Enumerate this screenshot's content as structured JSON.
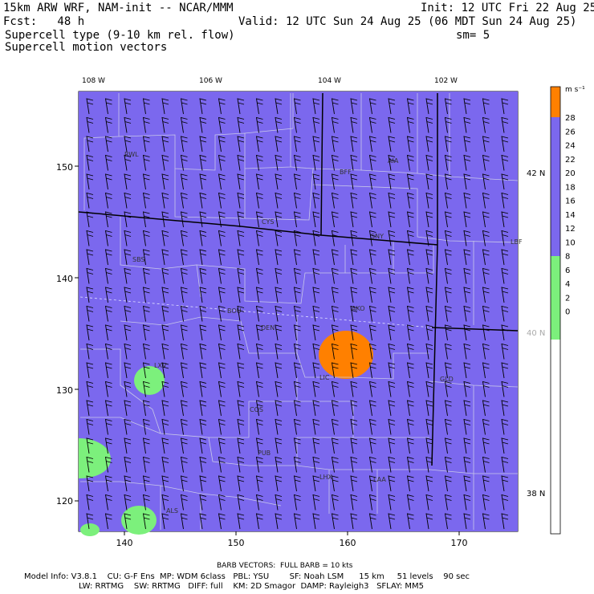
{
  "header": {
    "model_line": "15km ARW WRF, NAM-init -- NCAR/MMM",
    "init_line": "Init: 12 UTC Fri 22 Aug 25",
    "fcst_line": "Fcst:   48 h",
    "valid_line": "Valid: 12 UTC Sun 24 Aug 25 (06 MDT Sun 24 Aug 25)",
    "field_line": "Supercell type (9-10 km rel. flow)",
    "sm_line": "sm= 5",
    "vector_line": "Supercell motion vectors"
  },
  "map": {
    "fill_color": "#7b68ee",
    "lon_labels": [
      "108 W",
      "106 W",
      "104 W",
      "102 W"
    ],
    "lat_labels": [
      "42 N",
      "40 N",
      "38 N"
    ],
    "grid_x_ticks": [
      "140",
      "150",
      "160",
      "170"
    ],
    "grid_y_ticks": [
      "150",
      "140",
      "130",
      "120"
    ],
    "stations": [
      "RWL",
      "BFF",
      "AIA",
      "CYS",
      "SNY",
      "LBF",
      "SBS",
      "BOU",
      "DEN",
      "AKO",
      "LXV",
      "LIC",
      "GLD",
      "COS",
      "PUB",
      "LHX",
      "LAA",
      "ALS"
    ],
    "blobs": [
      {
        "color": "#ff8000",
        "label": "orange region near LIC"
      },
      {
        "color": "#7cf07c",
        "label": "green region near LXV"
      },
      {
        "color": "#7cf07c",
        "label": "green region west edge"
      },
      {
        "color": "#7cf07c",
        "label": "green region near ALS"
      },
      {
        "color": "#7cf07c",
        "label": "green region southwest corner"
      }
    ]
  },
  "colorbar": {
    "unit": "m s⁻¹",
    "labels": [
      "28",
      "26",
      "24",
      "22",
      "20",
      "18",
      "16",
      "14",
      "12",
      "10",
      "8",
      "6",
      "4",
      "2",
      "0"
    ],
    "bands": [
      {
        "color": "#ff8000"
      },
      {
        "color": "#7b68ee"
      },
      {
        "color": "#7cf07c"
      },
      {
        "color": "#ffffff"
      }
    ]
  },
  "footer": {
    "barb_line": "BARB VECTORS:  FULL BARB = 10 kts",
    "model_info": "Model Info: V3.8.1    CU: G-F Ens  MP: WDM 6class   PBL: YSU        SF: Noah LSM      15 km     51 levels    90 sec",
    "model_info2": "LW: RRTMG    SW: RRTMG   DIFF: full    KM: 2D Smagor  DAMP: Rayleigh3   SFLAY: MM5"
  }
}
